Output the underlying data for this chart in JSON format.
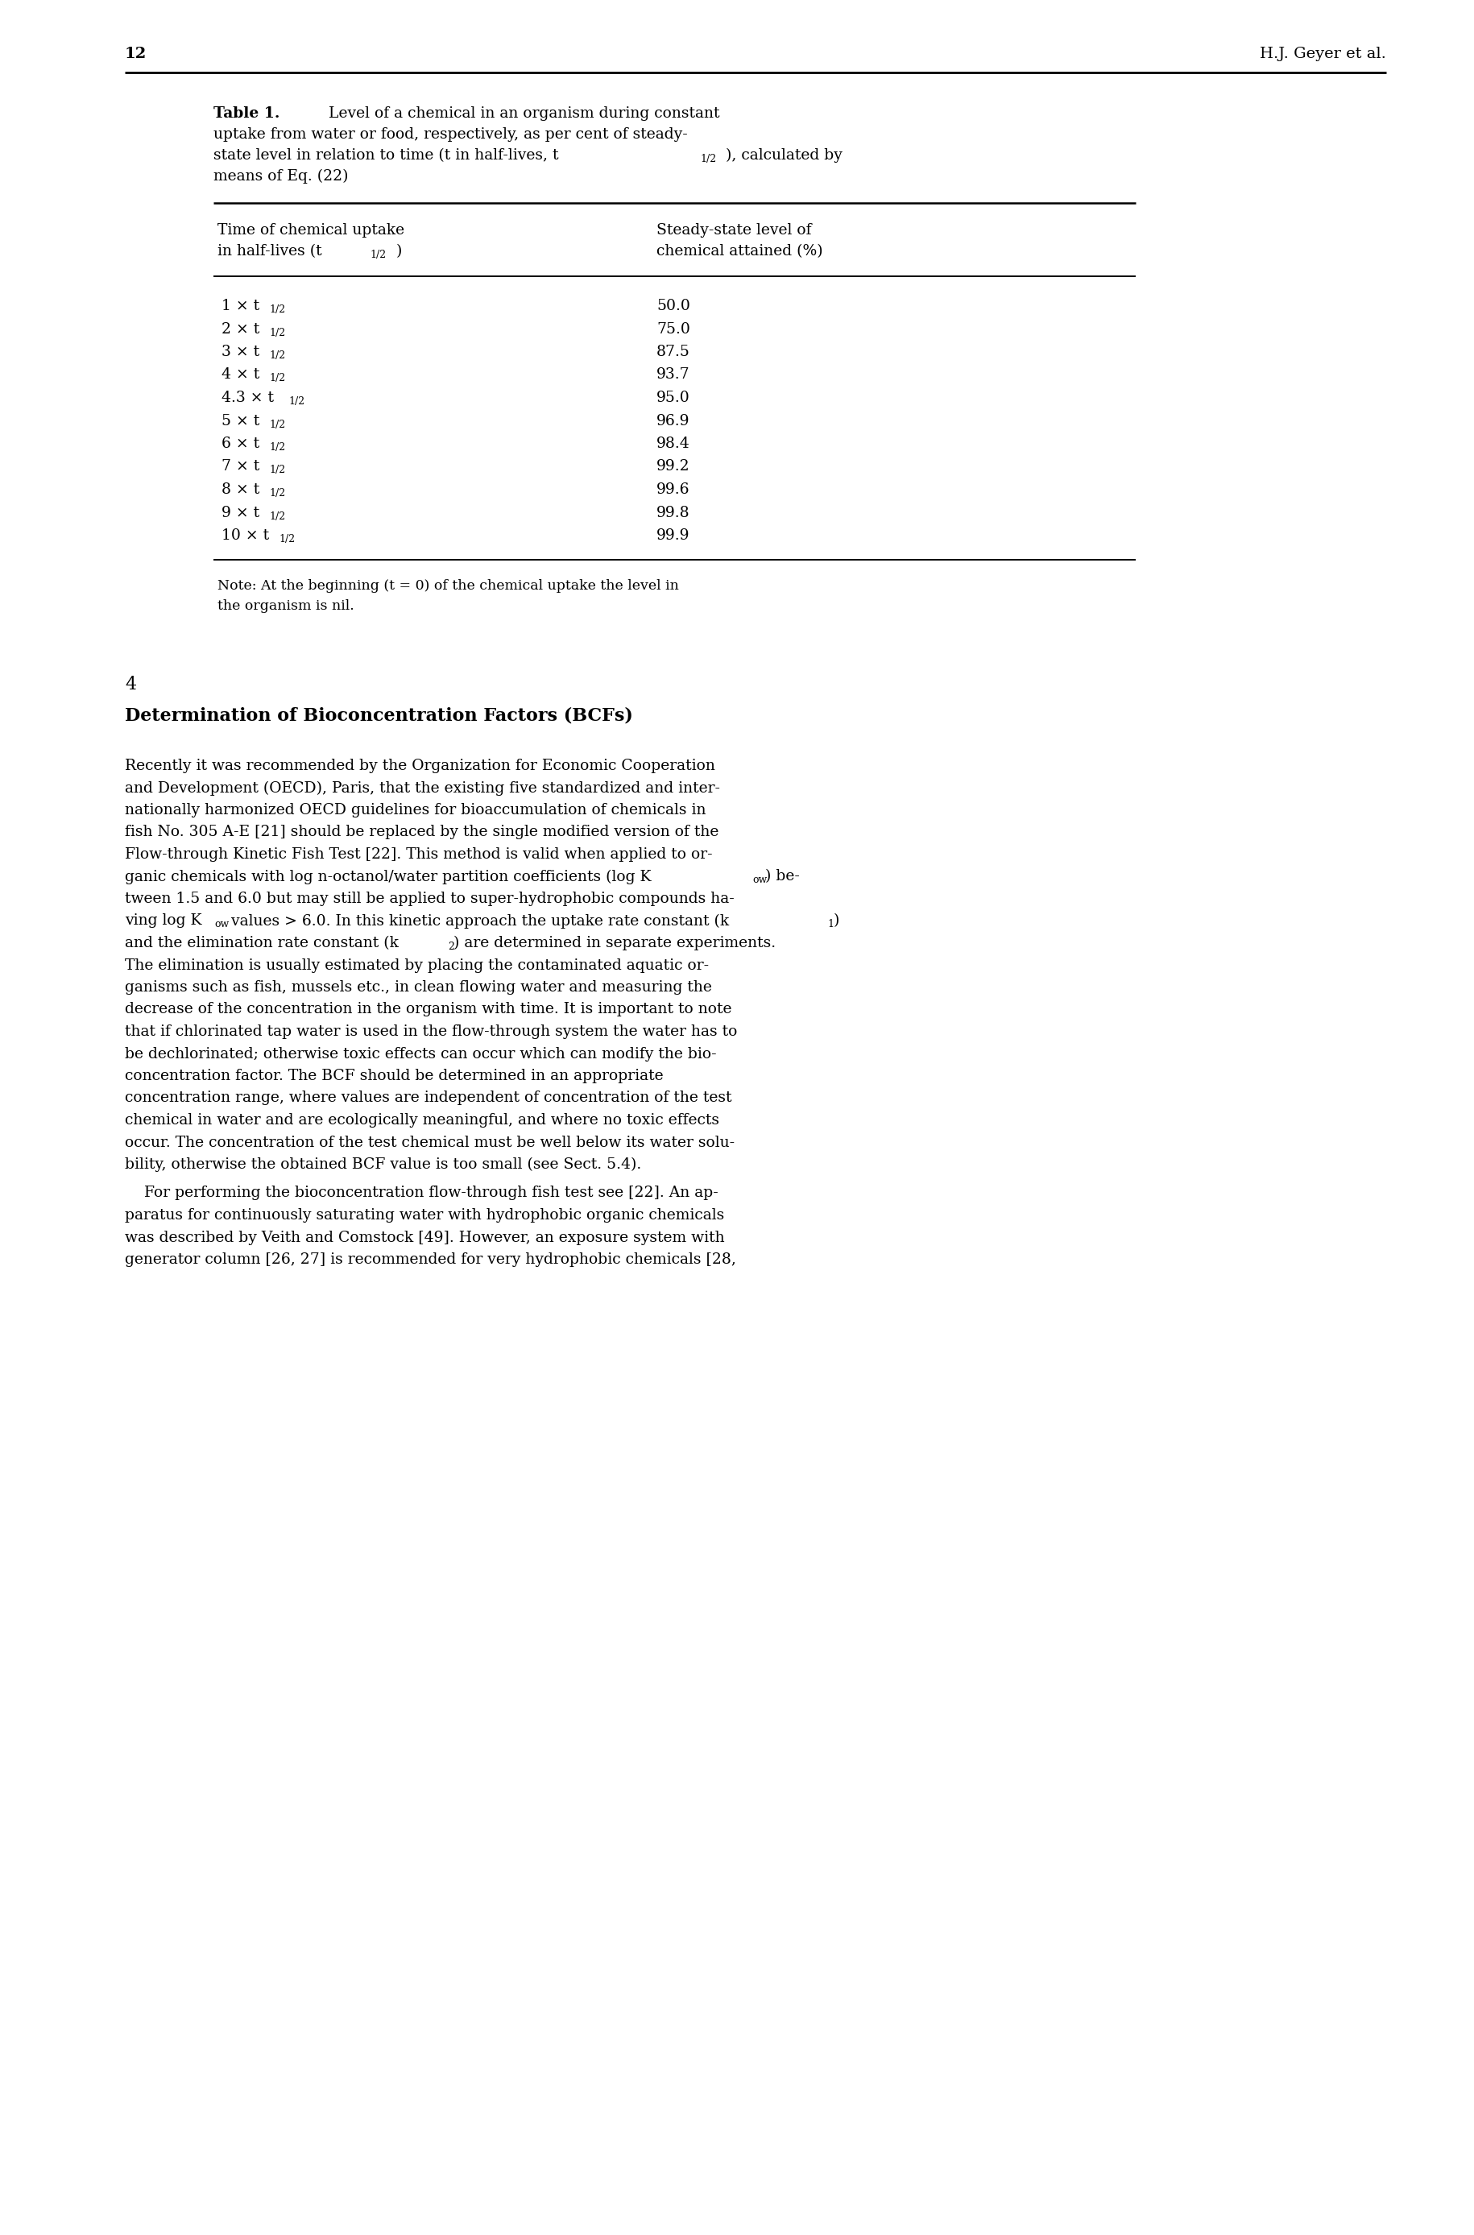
{
  "page_number": "12",
  "header_right": "H.J. Geyer et al.",
  "bg_color": "#ffffff",
  "text_color": "#000000",
  "table_rows": [
    [
      "1 × t",
      "50.0"
    ],
    [
      "2 × t",
      "75.0"
    ],
    [
      "3 × t",
      "87.5"
    ],
    [
      "4 × t",
      "93.7"
    ],
    [
      "4.3 × t",
      "95.0"
    ],
    [
      "5 × t",
      "96.9"
    ],
    [
      "6 × t",
      "98.4"
    ],
    [
      "7 × t",
      "99.2"
    ],
    [
      "8 × t",
      "99.6"
    ],
    [
      "9 × t",
      "99.8"
    ],
    [
      "10 × t",
      "99.9"
    ]
  ],
  "section_title": "Determination of Bioconcentration Factors (BCFs)",
  "para1_lines": [
    "Recently it was recommended by the Organization for Economic Cooperation",
    "and Development (OECD), Paris, that the existing five standardized and inter-",
    "nationally harmonized OECD guidelines for bioaccumulation of chemicals in",
    "fish No. 305 A-E [21] should be replaced by the single modified version of the",
    "Flow-through Kinetic Fish Test [22]. This method is valid when applied to or-",
    "ganic chemicals with log n-octanol/water partition coefficients (log K@@ow@@) be-",
    "tween 1.5 and 6.0 but may still be applied to super-hydrophobic compounds ha-",
    "ving log K@@ow@@ values > 6.0. In this kinetic approach the uptake rate constant (k@@1@@)",
    "and the elimination rate constant (k@@2@@) are determined in separate experiments.",
    "The elimination is usually estimated by placing the contaminated aquatic or-",
    "ganisms such as fish, mussels etc., in clean flowing water and measuring the",
    "decrease of the concentration in the organism with time. It is important to note",
    "that if chlorinated tap water is used in the flow-through system the water has to",
    "be dechlorinated; otherwise toxic effects can occur which can modify the bio-",
    "concentration factor. The BCF should be determined in an appropriate",
    "concentration range, where values are independent of concentration of the test",
    "chemical in water and are ecologically meaningful, and where no toxic effects",
    "occur. The concentration of the test chemical must be well below its water solu-",
    "bility, otherwise the obtained BCF value is too small (see Sect. 5.4)."
  ],
  "para2_lines": [
    "    For performing the bioconcentration flow-through fish test see [22]. An ap-",
    "paratus for continuously saturating water with hydrophobic organic chemicals",
    "was described by Veith and Comstock [49]. However, an exposure system with",
    "generator column [26, 27] is recommended for very hydrophobic chemicals [28,"
  ]
}
